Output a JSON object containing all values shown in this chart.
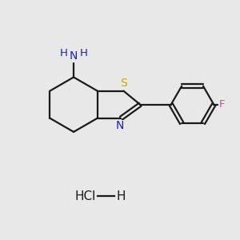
{
  "bg_color": "#e8e8e8",
  "bond_color": "#1a1a1a",
  "N_color": "#1a1add",
  "S_color": "#c8a800",
  "F_color": "#cc44aa",
  "line_width": 1.6,
  "font_size": 10,
  "hcl_text": "HCl",
  "h_text": "H",
  "n_text": "N",
  "s_text": "S",
  "f_text": "F",
  "nh_text": "N",
  "hh1_text": "H",
  "hh2_text": "H"
}
